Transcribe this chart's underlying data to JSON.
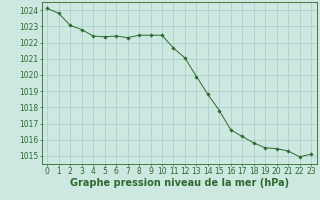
{
  "hours": [
    0,
    1,
    2,
    3,
    4,
    5,
    6,
    7,
    8,
    9,
    10,
    11,
    12,
    13,
    14,
    15,
    16,
    17,
    18,
    19,
    20,
    21,
    22,
    23
  ],
  "pressure": [
    1024.1,
    1023.8,
    1023.05,
    1022.8,
    1022.4,
    1022.35,
    1022.4,
    1022.3,
    1022.45,
    1022.45,
    1022.45,
    1021.65,
    1021.05,
    1019.9,
    1018.8,
    1017.8,
    1016.6,
    1016.2,
    1015.8,
    1015.5,
    1015.45,
    1015.3,
    1014.95,
    1015.1
  ],
  "line_color": "#2d6a2d",
  "marker_color": "#2d6a2d",
  "bg_color": "#cce8e0",
  "grid_color": "#a8ccc4",
  "axes_color": "#2d6a2d",
  "xlabel": "Graphe pression niveau de la mer (hPa)",
  "xlabel_fontsize": 7.0,
  "ylabel_fontsize": 5.5,
  "tick_fontsize": 5.5,
  "ylim": [
    1014.5,
    1024.5
  ],
  "yticks": [
    1015,
    1016,
    1017,
    1018,
    1019,
    1020,
    1021,
    1022,
    1023,
    1024
  ],
  "xlim": [
    -0.5,
    23.5
  ],
  "xticks": [
    0,
    1,
    2,
    3,
    4,
    5,
    6,
    7,
    8,
    9,
    10,
    11,
    12,
    13,
    14,
    15,
    16,
    17,
    18,
    19,
    20,
    21,
    22,
    23
  ]
}
